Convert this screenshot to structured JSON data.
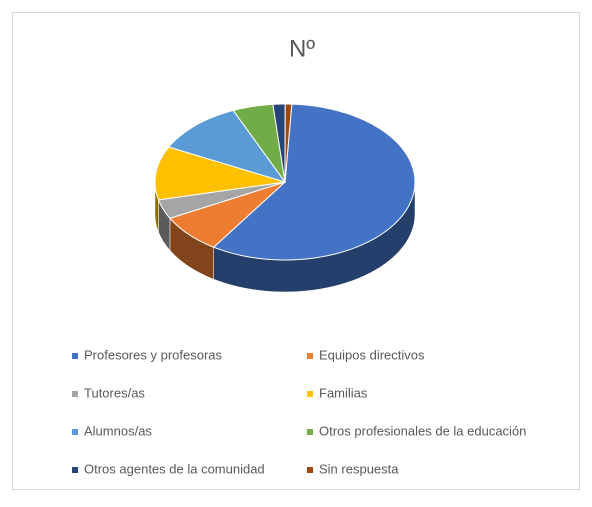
{
  "chart_data": {
    "type": "pie",
    "title": "Nº",
    "categories": [
      "Profesores y profesoras",
      "Equipos directivos",
      "Tutores/as",
      "Familias",
      "Alumnos/as",
      "Otros profesionales de la educación",
      "Otros agentes de la comunidad",
      "Sin respuesta"
    ],
    "values": [
      58,
      8,
      4,
      11,
      11,
      5,
      1.5,
      0.8
    ],
    "colors": [
      "#4472c4",
      "#ed7d31",
      "#a5a5a5",
      "#ffc000",
      "#5b9bd5",
      "#70ad47",
      "#264478",
      "#9e480e"
    ],
    "legend": "bottom"
  }
}
